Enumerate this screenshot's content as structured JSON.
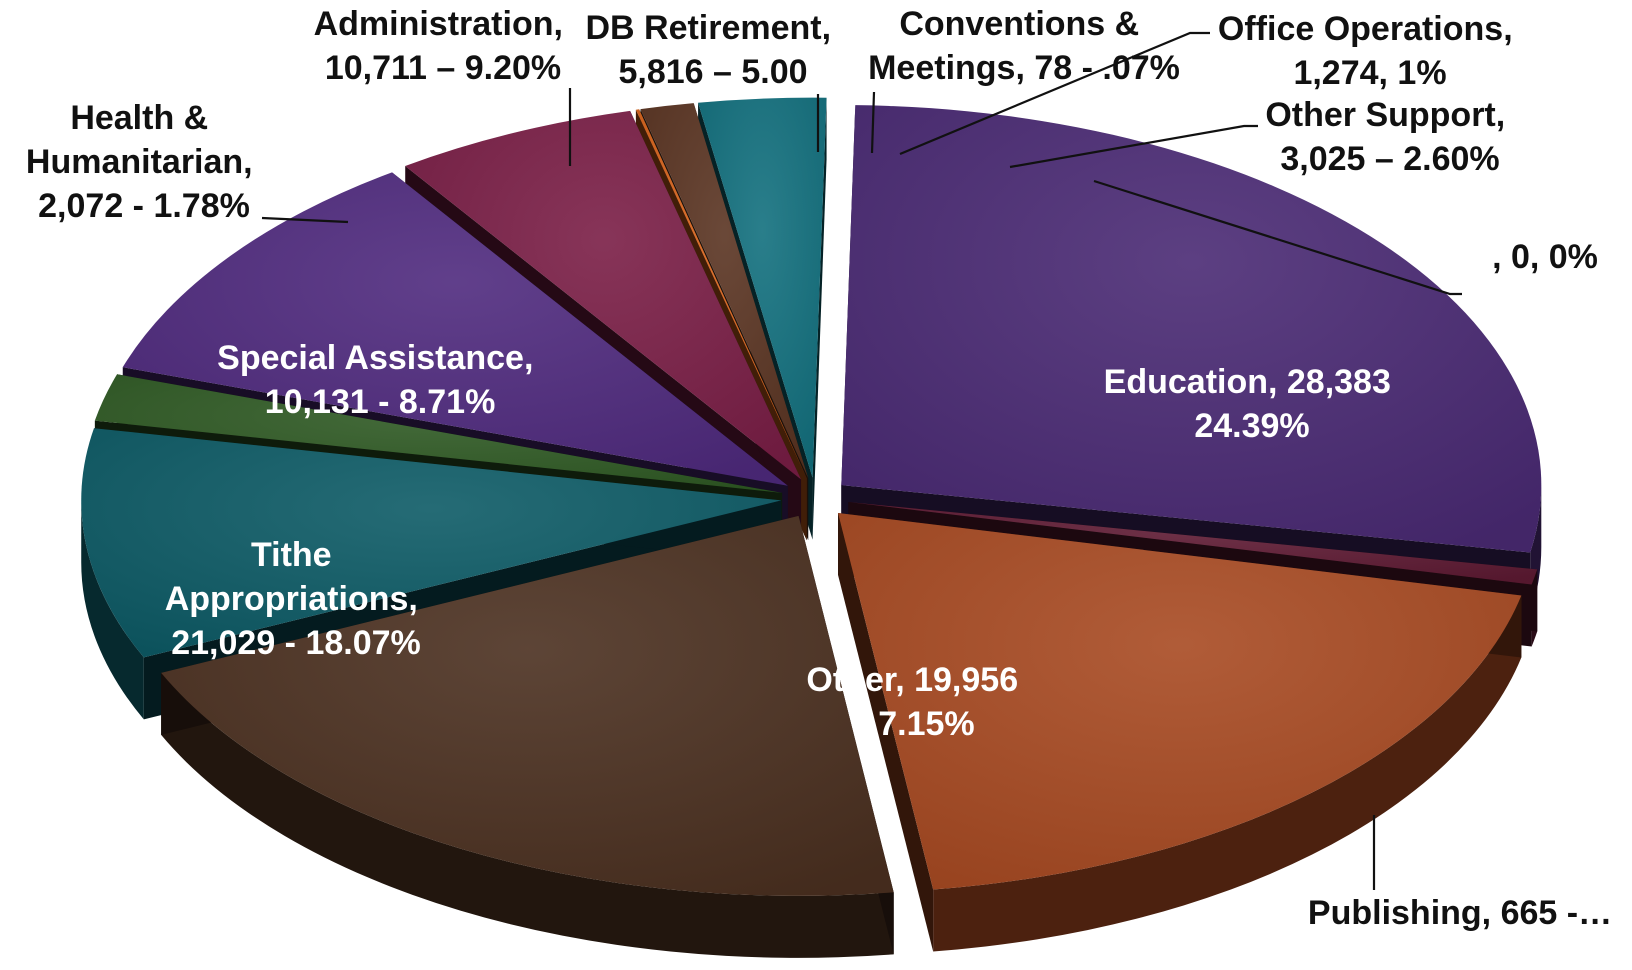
{
  "chart_data": {
    "type": "pie",
    "style": "3d-exploded",
    "slices": [
      {
        "category": "Education",
        "value": 28383,
        "percent": 24.39,
        "color": "#4a2a74",
        "label_lines": [
          "Education,  28,383",
          "24.39%"
        ],
        "label_placement": "inside"
      },
      {
        "category": "Publishing",
        "value": 665,
        "percent": 0.57,
        "color": "#5e1a33",
        "label_lines": [
          "Publishing, 665 -…"
        ],
        "label_placement": "outside"
      },
      {
        "category": "Other",
        "value": 19956,
        "percent": 17.15,
        "color": "#a84a22",
        "label_lines": [
          "Other, 19,956",
          "17.15%"
        ],
        "label_placement": "inside"
      },
      {
        "category": "Tithe Appropriations",
        "value": 21029,
        "percent": 18.07,
        "color": "#4b3020",
        "label_lines": [
          "Tithe",
          "Appropriations,",
          "21,029 - 18.07%"
        ],
        "label_placement": "inside"
      },
      {
        "category": "Special Assistance",
        "value": 10131,
        "percent": 8.71,
        "color": "#0d5b66",
        "label_lines": [
          "Special Assistance,",
          "10,131  -  8.71%"
        ],
        "label_placement": "inside"
      },
      {
        "category": "Health & Humanitarian",
        "value": 2072,
        "percent": 1.78,
        "color": "#2f5a24",
        "label_lines": [
          "Health &",
          "Humanitarian,",
          "2,072 - 1.78%"
        ],
        "label_placement": "outside"
      },
      {
        "category": "Administration",
        "value": 10711,
        "percent": 9.2,
        "color": "#4f2a7e",
        "label_lines": [
          "Administration,",
          "10,711 – 9.20%"
        ],
        "label_placement": "outside"
      },
      {
        "category": "DB Retirement",
        "value": 5816,
        "percent": 5.0,
        "color": "#7a1e46",
        "label_lines": [
          "DB Retirement,",
          "5,816 – 5.00"
        ],
        "label_placement": "outside"
      },
      {
        "category": "Conventions & Meetings",
        "value": 78,
        "percent": 0.07,
        "color": "#d8641c",
        "label_lines": [
          "Conventions &",
          "Meetings, 78 - .07%"
        ],
        "label_placement": "outside"
      },
      {
        "category": "Office Operations",
        "value": 1274,
        "percent": 1.0,
        "color": "#5a3422",
        "label_lines": [
          "Office Operations,",
          "1,274, 1%"
        ],
        "label_placement": "outside"
      },
      {
        "category": "Other Support",
        "value": 3025,
        "percent": 2.6,
        "color": "#12707e",
        "label_lines": [
          "Other Support,",
          "3,025 – 2.60%"
        ],
        "label_placement": "outside"
      },
      {
        "category": "",
        "value": 0,
        "percent": 0,
        "color": "#6a1a2a",
        "label_lines": [
          ", 0, 0%"
        ],
        "label_placement": "outside"
      }
    ],
    "legend": "none",
    "title": ""
  }
}
